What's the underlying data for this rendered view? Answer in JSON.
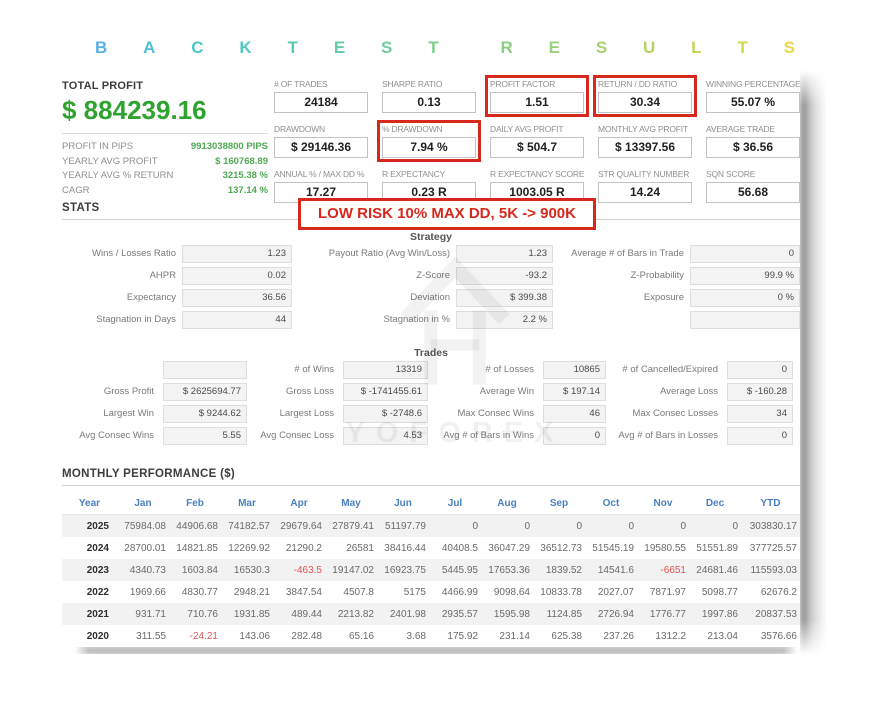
{
  "title": {
    "text": "BACKTEST RESULTS",
    "letters": [
      {
        "ch": "B",
        "color": "#58b0e8"
      },
      {
        "ch": "A",
        "color": "#4fc0d6"
      },
      {
        "ch": "C",
        "color": "#4ec5cd"
      },
      {
        "ch": "K",
        "color": "#53c7c0"
      },
      {
        "ch": "T",
        "color": "#5ac9b3"
      },
      {
        "ch": "E",
        "color": "#63cba7"
      },
      {
        "ch": "S",
        "color": "#6fcc9a"
      },
      {
        "ch": "T",
        "color": "#7cce8e",
        "space_after": true
      },
      {
        "ch": "R",
        "color": "#89cf83"
      },
      {
        "ch": "E",
        "color": "#97d178"
      },
      {
        "ch": "S",
        "color": "#a4d36c"
      },
      {
        "ch": "U",
        "color": "#b2d561"
      },
      {
        "ch": "L",
        "color": "#c0d756"
      },
      {
        "ch": "T",
        "color": "#cdd94b"
      },
      {
        "ch": "S",
        "color": "#ecd64a"
      }
    ]
  },
  "summary": {
    "total_profit_label": "TOTAL PROFIT",
    "total_profit_value": "$ 884239.16",
    "rows": [
      {
        "label": "PROFIT IN PIPS",
        "value": "9913038800 PIPS"
      },
      {
        "label": "YEARLY AVG PROFIT",
        "value": "$ 160768.89"
      },
      {
        "label": "YEARLY AVG % RETURN",
        "value": "3215.38 %"
      },
      {
        "label": "CAGR",
        "value": "137.14 %"
      }
    ]
  },
  "kpis": [
    {
      "label": "# OF TRADES",
      "value": "24184",
      "highlight": false
    },
    {
      "label": "SHARPE RATIO",
      "value": "0.13",
      "highlight": false
    },
    {
      "label": "PROFIT FACTOR",
      "value": "1.51",
      "highlight": true
    },
    {
      "label": "RETURN / DD RATIO",
      "value": "30.34",
      "highlight": true
    },
    {
      "label": "WINNING PERCENTAGE",
      "value": "55.07 %",
      "highlight": false
    },
    {
      "label": "DRAWDOWN",
      "value": "$ 29146.36",
      "highlight": false
    },
    {
      "label": "% DRAWDOWN",
      "value": "7.94 %",
      "highlight": true
    },
    {
      "label": "DAILY AVG PROFIT",
      "value": "$ 504.7",
      "highlight": false
    },
    {
      "label": "MONTHLY AVG PROFIT",
      "value": "$ 13397.56",
      "highlight": false
    },
    {
      "label": "AVERAGE TRADE",
      "value": "$ 36.56",
      "highlight": false
    },
    {
      "label": "ANNUAL % / MAX DD %",
      "value": "17.27",
      "highlight": false
    },
    {
      "label": "R EXPECTANCY",
      "value": "0.23 R",
      "highlight": false
    },
    {
      "label": "R EXPECTANCY SCORE",
      "value": "1003.05 R",
      "highlight": false
    },
    {
      "label": "STR QUALITY NUMBER",
      "value": "14.24",
      "highlight": false
    },
    {
      "label": "SQN SCORE",
      "value": "56.68",
      "highlight": false
    }
  ],
  "stats_heading": "STATS",
  "annotation": {
    "text": "LOW RISK 10% MAX DD, 5K -> 900K"
  },
  "strategy": {
    "heading": "Strategy",
    "cells": [
      {
        "label": "Wins / Losses Ratio",
        "value": "1.23"
      },
      {
        "label": "Payout Ratio (Avg Win/Loss)",
        "value": "1.23"
      },
      {
        "label": "Average # of Bars in Trade",
        "value": "0"
      },
      {
        "label": "AHPR",
        "value": "0.02"
      },
      {
        "label": "Z-Score",
        "value": "-93.2"
      },
      {
        "label": "Z-Probability",
        "value": "99.9 %"
      },
      {
        "label": "Expectancy",
        "value": "36.56"
      },
      {
        "label": "Deviation",
        "value": "$ 399.38"
      },
      {
        "label": "Exposure",
        "value": "0 %"
      },
      {
        "label": "Stagnation in Days",
        "value": "44"
      },
      {
        "label": "Stagnation in %",
        "value": "2.2 %"
      },
      {
        "label": "",
        "value": ""
      }
    ]
  },
  "trades": {
    "heading": "Trades",
    "cells": [
      {
        "label": "",
        "value": ""
      },
      {
        "label": "# of Wins",
        "value": "13319"
      },
      {
        "label": "# of Losses",
        "value": "10865"
      },
      {
        "label": "# of Cancelled/Expired",
        "value": "0"
      },
      {
        "label": "Gross Profit",
        "value": "$ 2625694.77"
      },
      {
        "label": "Gross Loss",
        "value": "$ -1741455.61"
      },
      {
        "label": "Average Win",
        "value": "$ 197.14"
      },
      {
        "label": "Average Loss",
        "value": "$ -160.28"
      },
      {
        "label": "Largest Win",
        "value": "$ 9244.62"
      },
      {
        "label": "Largest Loss",
        "value": "$ -2748.6"
      },
      {
        "label": "Max Consec Wins",
        "value": "46"
      },
      {
        "label": "Max Consec Losses",
        "value": "34"
      },
      {
        "label": "Avg Consec Wins",
        "value": "5.55"
      },
      {
        "label": "Avg Consec Loss",
        "value": "4.53"
      },
      {
        "label": "Avg # of Bars in Wins",
        "value": "0"
      },
      {
        "label": "Avg # of Bars in Losses",
        "value": "0"
      }
    ]
  },
  "monthly": {
    "heading": "MONTHLY PERFORMANCE ($)",
    "columns": [
      "Year",
      "Jan",
      "Feb",
      "Mar",
      "Apr",
      "May",
      "Jun",
      "Jul",
      "Aug",
      "Sep",
      "Oct",
      "Nov",
      "Dec",
      "YTD"
    ],
    "rows": [
      {
        "year": "2025",
        "values": [
          "75984.08",
          "44906.68",
          "74182.57",
          "29679.64",
          "27879.41",
          "51197.79",
          "0",
          "0",
          "0",
          "0",
          "0",
          "0",
          "303830.17"
        ]
      },
      {
        "year": "2024",
        "values": [
          "28700.01",
          "14821.85",
          "12269.92",
          "21290.2",
          "26581",
          "38416.44",
          "40408.5",
          "36047.29",
          "36512.73",
          "51545.19",
          "19580.55",
          "51551.89",
          "377725.57"
        ]
      },
      {
        "year": "2023",
        "values": [
          "4340.73",
          "1603.84",
          "16530.3",
          "-463.5",
          "19147.02",
          "16923.75",
          "5445.95",
          "17653.36",
          "1839.52",
          "14541.6",
          "-6651",
          "24681.46",
          "115593.03"
        ]
      },
      {
        "year": "2022",
        "values": [
          "1969.66",
          "4830.77",
          "2948.21",
          "3847.54",
          "4507.8",
          "5175",
          "4466.99",
          "9098.64",
          "10833.78",
          "2027.07",
          "7871.97",
          "5098.77",
          "62676.2"
        ]
      },
      {
        "year": "2021",
        "values": [
          "931.71",
          "710.76",
          "1931.85",
          "489.44",
          "2213.82",
          "2401.98",
          "2935.57",
          "1595.98",
          "1124.85",
          "2726.94",
          "1776.77",
          "1997.86",
          "20837.53"
        ]
      },
      {
        "year": "2020",
        "values": [
          "311.55",
          "-24.21",
          "143.06",
          "282.48",
          "65.16",
          "3.68",
          "175.92",
          "231.14",
          "625.38",
          "237.26",
          "1312.2",
          "213.04",
          "3576.66"
        ]
      }
    ]
  },
  "watermark": {
    "text": "YOFOREX"
  },
  "colors": {
    "profit_green": "#2fa32f",
    "value_green": "#4fa854",
    "highlight_red": "#d7281d",
    "negative_red": "#e25454",
    "table_header_blue": "#4a80c0"
  }
}
